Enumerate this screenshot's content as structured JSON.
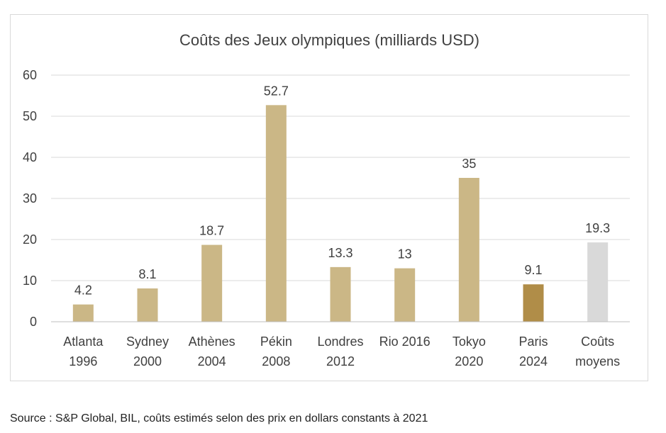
{
  "chart_data": {
    "type": "bar",
    "title": "Coûts des Jeux olympiques (milliards USD)",
    "categories": [
      [
        "Atlanta",
        "1996"
      ],
      [
        "Sydney",
        "2000"
      ],
      [
        "Athènes",
        "2004"
      ],
      [
        "Pékin",
        "2008"
      ],
      [
        "Londres",
        "2012"
      ],
      [
        "Rio 2016"
      ],
      [
        "Tokyo",
        "2020"
      ],
      [
        "Paris",
        "2024"
      ],
      [
        "Coûts",
        "moyens"
      ]
    ],
    "values": [
      4.2,
      8.1,
      18.7,
      52.7,
      13.3,
      13,
      35,
      9.1,
      19.3
    ],
    "data_labels": [
      "4.2",
      "8.1",
      "18.7",
      "52.7",
      "13.3",
      "13",
      "35",
      "9.1",
      "19.3"
    ],
    "colors": [
      "#cbb786",
      "#cbb786",
      "#cbb786",
      "#cbb786",
      "#cbb786",
      "#cbb786",
      "#cbb786",
      "#b08d48",
      "#d9d9d9"
    ],
    "yticks": [
      0,
      10,
      20,
      30,
      40,
      50,
      60
    ],
    "ylim": [
      0,
      60
    ],
    "grid": true,
    "legend": "none"
  },
  "source": "Source : S&P Global, BIL, coûts estimés selon des prix en dollars constants à 2021"
}
